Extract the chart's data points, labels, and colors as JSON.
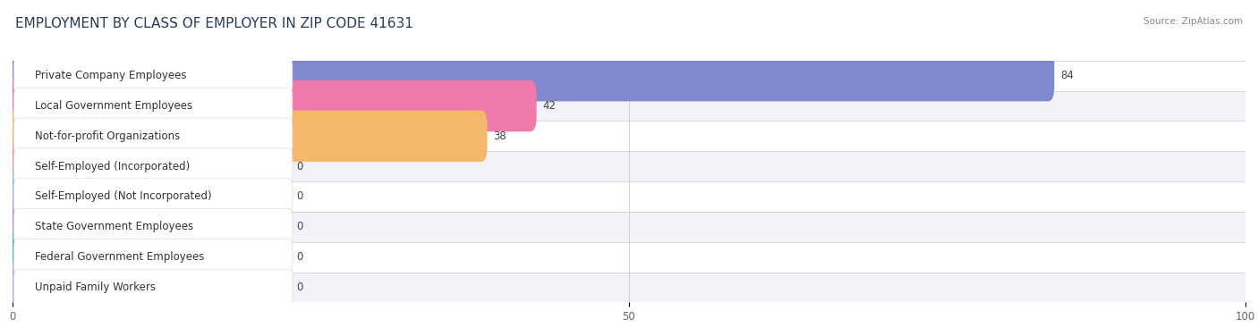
{
  "title": "EMPLOYMENT BY CLASS OF EMPLOYER IN ZIP CODE 41631",
  "source": "Source: ZipAtlas.com",
  "categories": [
    "Private Company Employees",
    "Local Government Employees",
    "Not-for-profit Organizations",
    "Self-Employed (Incorporated)",
    "Self-Employed (Not Incorporated)",
    "State Government Employees",
    "Federal Government Employees",
    "Unpaid Family Workers"
  ],
  "values": [
    84,
    42,
    38,
    0,
    0,
    0,
    0,
    0
  ],
  "bar_colors": [
    "#8088d0",
    "#f07aaa",
    "#f5b86a",
    "#f09898",
    "#98b8e0",
    "#b898cc",
    "#58b8b0",
    "#a8b4d8"
  ],
  "bar_border_colors": [
    "#8088d0",
    "#f07aaa",
    "#f5b86a",
    "#f09898",
    "#98b8e0",
    "#b898cc",
    "#58b8b0",
    "#a8b4d8"
  ],
  "row_even_color": "#ffffff",
  "row_odd_color": "#f2f2f8",
  "xlim": [
    0,
    100
  ],
  "xticks": [
    0,
    50,
    100
  ],
  "background_color": "#ffffff",
  "title_fontsize": 11,
  "label_fontsize": 8.5,
  "value_fontsize": 8.5,
  "title_color": "#2a3a5a",
  "source_color": "#888888",
  "bar_min_display": 22
}
